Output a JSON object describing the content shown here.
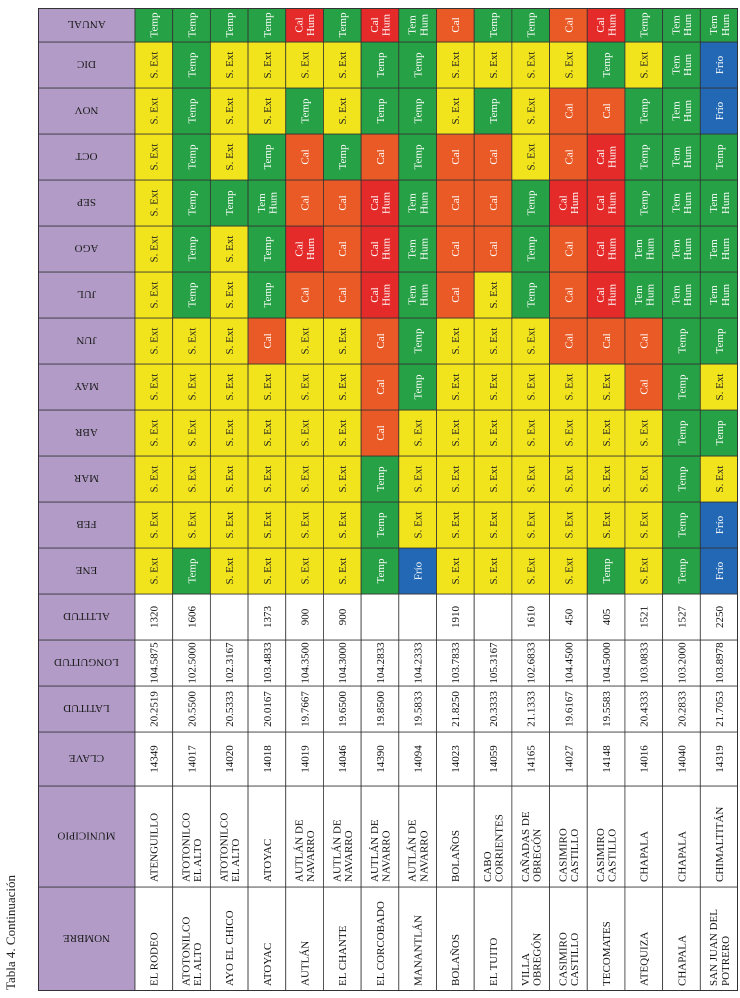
{
  "caption": "Tabla 4. Continuación",
  "headers": [
    "NOMBRE",
    "MUNICIPIO",
    "CLAVE",
    "LATITUD",
    "LONGUITUD",
    "ALTITUD",
    "ENE",
    "FEB",
    "MAR",
    "ABR",
    "MAY",
    "JUN",
    "JUL",
    "AGO",
    "SEP",
    "OCT",
    "NOV",
    "DIC",
    "ANUAL"
  ],
  "category_colors": {
    "S. Ext": "#f2e41c",
    "Temp": "#27a146",
    "Cal": "#ea5a26",
    "Cal Hum": "#e42b2a",
    "Tem Hum": "#27a146",
    "Frío": "#2268b4",
    "header": "#b29cc7",
    "blank": "#ffffff"
  },
  "rows": [
    {
      "nombre": [
        "EL RODEO"
      ],
      "municipio": [
        "ATENGUILLO"
      ],
      "clave": "14349",
      "latitud": "20.2519",
      "longitud": "104.5875",
      "altitud": "1320",
      "months": [
        "S. Ext",
        "S. Ext",
        "S. Ext",
        "S. Ext",
        "S. Ext",
        "S. Ext",
        "S. Ext",
        "S. Ext",
        "S. Ext",
        "S. Ext",
        "S. Ext",
        "S. Ext",
        "Temp"
      ]
    },
    {
      "nombre": [
        "ATOTONILCO",
        "EL ALTO"
      ],
      "municipio": [
        "ATOTONILCO",
        "EL ALTO"
      ],
      "clave": "14017",
      "latitud": "20.5500",
      "longitud": "102.5000",
      "altitud": "1606",
      "months": [
        "Temp",
        "S. Ext",
        "S. Ext",
        "S. Ext",
        "S. Ext",
        "S. Ext",
        "Temp",
        "Temp",
        "Temp",
        "Temp",
        "Temp",
        "Temp",
        "Temp"
      ]
    },
    {
      "nombre": [
        "AYO EL CHICO"
      ],
      "municipio": [
        "ATOTONILCO",
        "EL ALTO"
      ],
      "clave": "14020",
      "latitud": "20.5333",
      "longitud": "102.3167",
      "altitud": "",
      "months": [
        "S. Ext",
        "S. Ext",
        "S. Ext",
        "S. Ext",
        "S. Ext",
        "S. Ext",
        "S. Ext",
        "S. Ext",
        "Temp",
        "S. Ext",
        "S. Ext",
        "S. Ext",
        "Temp"
      ]
    },
    {
      "nombre": [
        "ATOYAC"
      ],
      "municipio": [
        "ATOYAC"
      ],
      "clave": "14018",
      "latitud": "20.0167",
      "longitud": "103.4833",
      "altitud": "1373",
      "months": [
        "S. Ext",
        "S. Ext",
        "S. Ext",
        "S. Ext",
        "S. Ext",
        "Cal",
        "Temp",
        "Temp",
        "Tem Hum",
        "Temp",
        "S. Ext",
        "S. Ext",
        "Temp"
      ]
    },
    {
      "nombre": [
        "AUTLÁN"
      ],
      "municipio": [
        "AUTLÁN DE",
        "NAVARRO"
      ],
      "clave": "14019",
      "latitud": "19.7667",
      "longitud": "104.3500",
      "altitud": "900",
      "months": [
        "S. Ext",
        "S. Ext",
        "S. Ext",
        "S. Ext",
        "S. Ext",
        "S. Ext",
        "Cal",
        "Cal Hum",
        "Cal",
        "Cal",
        "Temp",
        "S. Ext",
        "Cal Hum"
      ]
    },
    {
      "nombre": [
        "EL CHANTE"
      ],
      "municipio": [
        "AUTLÁN DE",
        "NAVARRO"
      ],
      "clave": "14046",
      "latitud": "19.6500",
      "longitud": "104.3000",
      "altitud": "900",
      "months": [
        "S. Ext",
        "S. Ext",
        "S. Ext",
        "S. Ext",
        "S. Ext",
        "S. Ext",
        "Cal",
        "Cal",
        "Cal",
        "Temp",
        "S. Ext",
        "S. Ext",
        "Temp"
      ]
    },
    {
      "nombre": [
        "EL CORCOBADO"
      ],
      "municipio": [
        "AUTLÁN DE",
        "NAVARRO"
      ],
      "clave": "14390",
      "latitud": "19.8500",
      "longitud": "104.2833",
      "altitud": "",
      "months": [
        "Temp",
        "Temp",
        "Temp",
        "Cal",
        "Cal",
        "Cal",
        "Cal Hum",
        "Cal Hum",
        "Cal Hum",
        "Cal",
        "Temp",
        "Temp",
        "Cal Hum"
      ]
    },
    {
      "nombre": [
        "MANANTLÁN"
      ],
      "municipio": [
        "AUTLÁN DE",
        "NAVARRO"
      ],
      "clave": "14094",
      "latitud": "19.5833",
      "longitud": "104.2333",
      "altitud": "",
      "months": [
        "Frío",
        "S. Ext",
        "S. Ext",
        "S. Ext",
        "Temp",
        "Temp",
        "Tem Hum",
        "Tem Hum",
        "Tem Hum",
        "Temp",
        "Temp",
        "Temp",
        "Tem Hum"
      ]
    },
    {
      "nombre": [
        "BOLAÑOS"
      ],
      "municipio": [
        "BOLAÑOS"
      ],
      "clave": "14023",
      "latitud": "21.8250",
      "longitud": "103.7833",
      "altitud": "1910",
      "months": [
        "S. Ext",
        "S. Ext",
        "S. Ext",
        "S. Ext",
        "S. Ext",
        "S. Ext",
        "Cal",
        "Cal",
        "Cal",
        "Cal",
        "S. Ext",
        "S. Ext",
        "Cal"
      ]
    },
    {
      "nombre": [
        "EL TUITO"
      ],
      "municipio": [
        "CABO",
        "CORRIENTES"
      ],
      "clave": "14059",
      "latitud": "20.3333",
      "longitud": "105.3167",
      "altitud": "",
      "months": [
        "S. Ext",
        "S. Ext",
        "S. Ext",
        "S. Ext",
        "S. Ext",
        "S. Ext",
        "S. Ext",
        "Cal",
        "Cal",
        "Cal",
        "Temp",
        "S. Ext",
        "Temp"
      ]
    },
    {
      "nombre": [
        "VILLA",
        "OBREGÓN"
      ],
      "municipio": [
        "CAÑADAS DE",
        "OBREGÓN"
      ],
      "clave": "14165",
      "latitud": "21.1333",
      "longitud": "102.6833",
      "altitud": "1610",
      "months": [
        "S. Ext",
        "S. Ext",
        "S. Ext",
        "S. Ext",
        "S. Ext",
        "S. Ext",
        "Temp",
        "Temp",
        "Temp",
        "S. Ext",
        "S. Ext",
        "S. Ext",
        "Temp"
      ]
    },
    {
      "nombre": [
        "CASIMIRO",
        "CASTILLO"
      ],
      "municipio": [
        "CASIMIRO",
        "CASTILLO"
      ],
      "clave": "14027",
      "latitud": "19.6167",
      "longitud": "104.4500",
      "altitud": "450",
      "months": [
        "S. Ext",
        "S. Ext",
        "S. Ext",
        "S. Ext",
        "S. Ext",
        "Cal",
        "Cal",
        "Cal",
        "Cal Hum",
        "Cal",
        "Cal",
        "S. Ext",
        "Cal"
      ]
    },
    {
      "nombre": [
        "TECOMATES"
      ],
      "municipio": [
        "CASIMIRO",
        "CASTILLO"
      ],
      "clave": "14148",
      "latitud": "19.5583",
      "longitud": "104.5000",
      "altitud": "405",
      "months": [
        "Temp",
        "S. Ext",
        "S. Ext",
        "S. Ext",
        "S. Ext",
        "Cal",
        "Cal Hum",
        "Cal Hum",
        "Cal Hum",
        "Cal Hum",
        "Cal",
        "Temp",
        "Cal Hum"
      ]
    },
    {
      "nombre": [
        "ATEQUIZA"
      ],
      "municipio": [
        "CHAPALA"
      ],
      "clave": "14016",
      "latitud": "20.4333",
      "longitud": "103.0833",
      "altitud": "1521",
      "months": [
        "S. Ext",
        "S. Ext",
        "S. Ext",
        "S. Ext",
        "Cal",
        "Cal",
        "Tem Hum",
        "Tem Hum",
        "Temp",
        "Temp",
        "Temp",
        "S. Ext",
        "Temp"
      ]
    },
    {
      "nombre": [
        "CHAPALA"
      ],
      "municipio": [
        "CHAPALA"
      ],
      "clave": "14040",
      "latitud": "20.2833",
      "longitud": "103.2000",
      "altitud": "1527",
      "months": [
        "Temp",
        "Temp",
        "Temp",
        "Temp",
        "Temp",
        "Temp",
        "Tem Hum",
        "Tem Hum",
        "Tem Hum",
        "Tem Hum",
        "Tem Hum",
        "Tem Hum",
        "Tem Hum"
      ]
    },
    {
      "nombre": [
        "SAN JUAN DEL",
        "POTRERO"
      ],
      "municipio": [
        "CHIMALTITÁN"
      ],
      "clave": "14319",
      "latitud": "21.7053",
      "longitud": "103.8978",
      "altitud": "2250",
      "months": [
        "Frío",
        "Frío",
        "S. Ext",
        "Temp",
        "S. Ext",
        "Temp",
        "Tem Hum",
        "Tem Hum",
        "Tem Hum",
        "Temp",
        "Frío",
        "Frío",
        "Tem Hum"
      ]
    }
  ]
}
